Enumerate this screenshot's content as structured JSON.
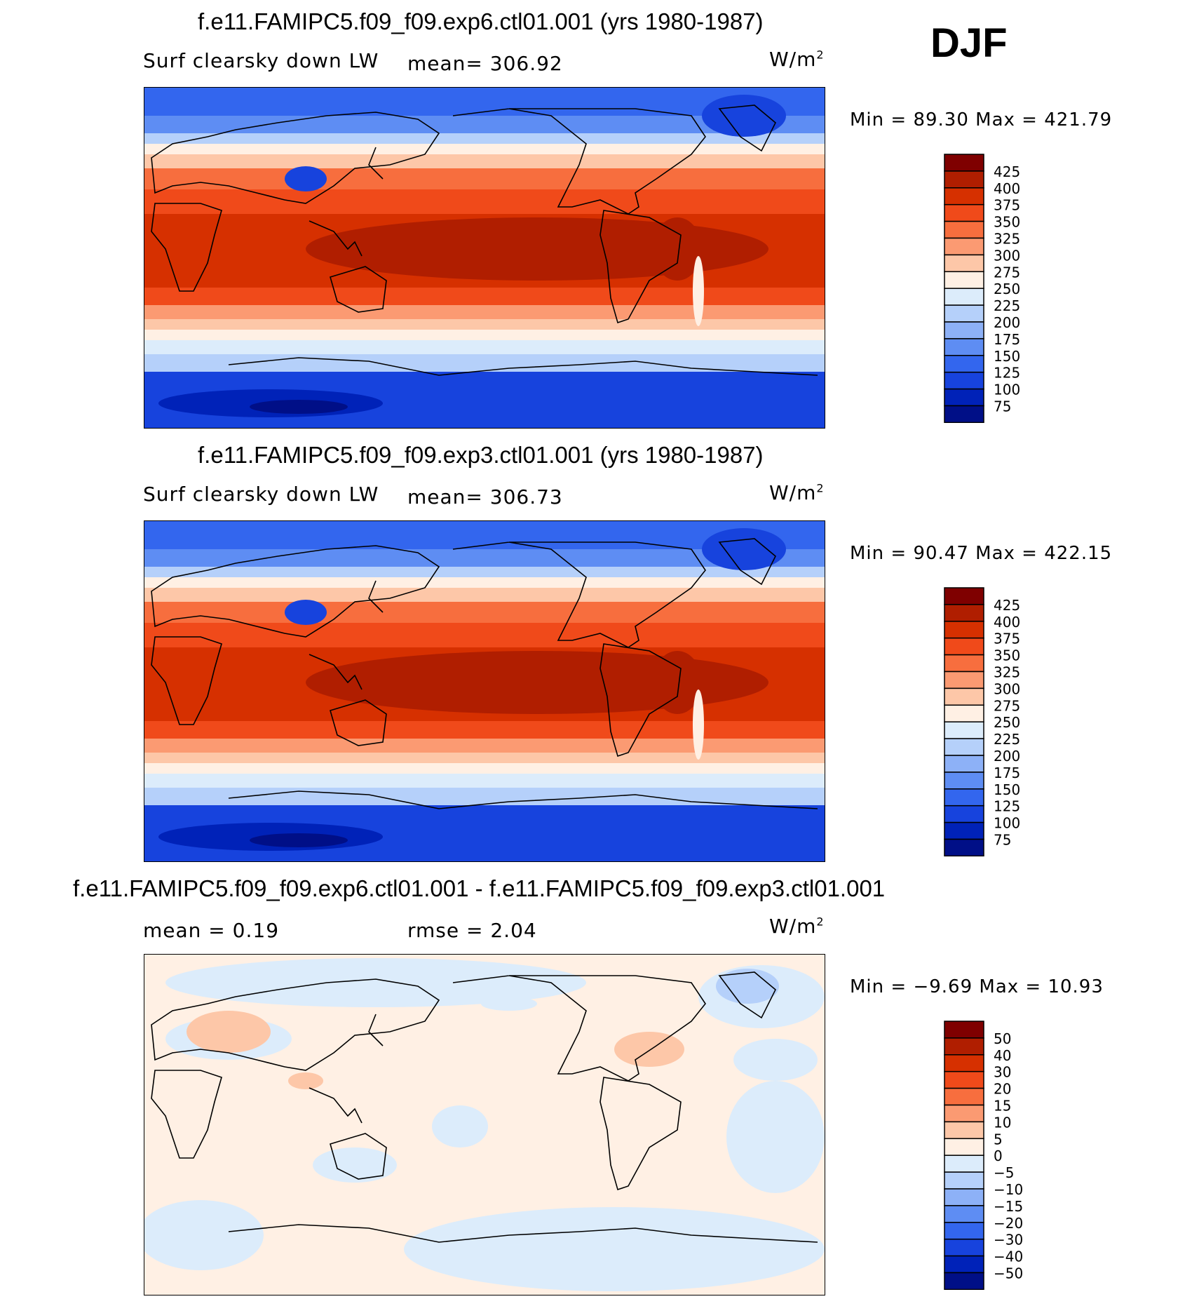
{
  "season": "DJF",
  "panels": [
    {
      "title": "f.e11.FAMIPC5.f09_f09.exp6.ctl01.001 (yrs 1980-1987)",
      "variable": "Surf clearsky down LW",
      "mean_label": "mean= 306.92",
      "units": "W/m",
      "units_sup": "2",
      "minmax": "Min =   89.30 Max = 421.79",
      "colorbar": {
        "labels": [
          "425",
          "400",
          "375",
          "350",
          "325",
          "300",
          "275",
          "250",
          "225",
          "200",
          "175",
          "150",
          "125",
          "100",
          "75"
        ],
        "colors": [
          "#7f0000",
          "#b01e00",
          "#d63000",
          "#f04a1a",
          "#f76e3e",
          "#fb9a72",
          "#fdc7a8",
          "#fff0e4",
          "#dcecfb",
          "#b5d0fa",
          "#8db1f7",
          "#5e8df3",
          "#3366ee",
          "#1743dd",
          "#0022b8",
          "#000f87"
        ]
      }
    },
    {
      "title": "f.e11.FAMIPC5.f09_f09.exp3.ctl01.001 (yrs 1980-1987)",
      "variable": "Surf clearsky down LW",
      "mean_label": "mean= 306.73",
      "units": "W/m",
      "units_sup": "2",
      "minmax": "Min =   90.47 Max = 422.15",
      "colorbar": {
        "labels": [
          "425",
          "400",
          "375",
          "350",
          "325",
          "300",
          "275",
          "250",
          "225",
          "200",
          "175",
          "150",
          "125",
          "100",
          "75"
        ],
        "colors": [
          "#7f0000",
          "#b01e00",
          "#d63000",
          "#f04a1a",
          "#f76e3e",
          "#fb9a72",
          "#fdc7a8",
          "#fff0e4",
          "#dcecfb",
          "#b5d0fa",
          "#8db1f7",
          "#5e8df3",
          "#3366ee",
          "#1743dd",
          "#0022b8",
          "#000f87"
        ]
      }
    },
    {
      "title": "f.e11.FAMIPC5.f09_f09.exp6.ctl01.001 - f.e11.FAMIPC5.f09_f09.exp3.ctl01.001",
      "mean_label": "mean =    0.19",
      "rmse_label": "rmse =    2.04",
      "units": "W/m",
      "units_sup": "2",
      "minmax": "Min =  −9.69 Max =   10.93",
      "colorbar": {
        "labels": [
          "50",
          "40",
          "30",
          "20",
          "15",
          "10",
          "5",
          "0",
          "−5",
          "−10",
          "−15",
          "−20",
          "−30",
          "−40",
          "−50"
        ],
        "colors": [
          "#7f0000",
          "#b01e00",
          "#d63000",
          "#f04a1a",
          "#f76e3e",
          "#fb9a72",
          "#fdc7a8",
          "#fff0e4",
          "#dcecfb",
          "#b5d0fa",
          "#8db1f7",
          "#5e8df3",
          "#3366ee",
          "#1743dd",
          "#0022b8",
          "#000f87"
        ]
      }
    }
  ]
}
